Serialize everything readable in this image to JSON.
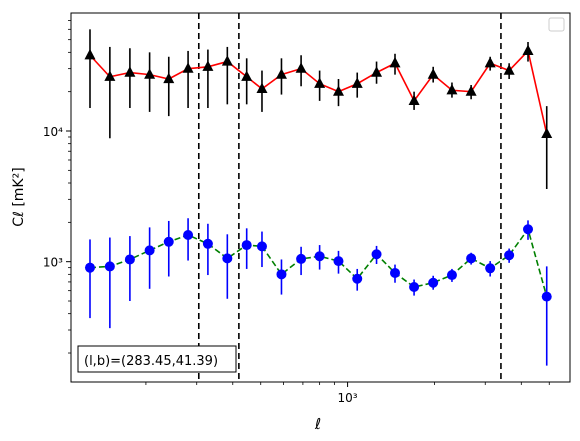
{
  "chart_data": {
    "type": "scatter",
    "xscale": "log",
    "yscale": "log",
    "xlim": [
      110,
      5900
    ],
    "ylim": [
      120,
      80000
    ],
    "xlabel": "ℓ",
    "ylabel": "Cℓ  [mK²]",
    "x_ticks": [
      {
        "value": 1000,
        "label": "10³"
      }
    ],
    "y_ticks": [
      {
        "value": 1000,
        "label": "10³"
      },
      {
        "value": 10000,
        "label": "10⁴"
      }
    ],
    "grid": false,
    "legend": {
      "placement": "top-right",
      "entries": []
    },
    "annotation": "(l,b)=(283.45,41.39)",
    "vlines": [
      305,
      420,
      3400
    ],
    "series": [
      {
        "marker": "triangle",
        "marker_color": "#000000",
        "line_color": "#ff0000",
        "line_style": "solid",
        "errorbar_color": "#000000",
        "points": [
          {
            "x": 128,
            "y": 38000,
            "ylo": 15000,
            "yhi": 60000
          },
          {
            "x": 150,
            "y": 26000,
            "ylo": 8800,
            "yhi": 44000
          },
          {
            "x": 176,
            "y": 28000,
            "ylo": 15000,
            "yhi": 43000
          },
          {
            "x": 206,
            "y": 27000,
            "ylo": 14000,
            "yhi": 40000
          },
          {
            "x": 240,
            "y": 25000,
            "ylo": 13000,
            "yhi": 37000
          },
          {
            "x": 280,
            "y": 30000,
            "ylo": 15000,
            "yhi": 41000
          },
          {
            "x": 328,
            "y": 31000,
            "ylo": 15000,
            "yhi": 42000
          },
          {
            "x": 383,
            "y": 34000,
            "ylo": 16000,
            "yhi": 44000
          },
          {
            "x": 447,
            "y": 26000,
            "ylo": 16000,
            "yhi": 36000
          },
          {
            "x": 505,
            "y": 21000,
            "ylo": 14000,
            "yhi": 29000
          },
          {
            "x": 590,
            "y": 27000,
            "ylo": 19000,
            "yhi": 36000
          },
          {
            "x": 690,
            "y": 30000,
            "ylo": 22000,
            "yhi": 38000
          },
          {
            "x": 800,
            "y": 23000,
            "ylo": 17000,
            "yhi": 29000
          },
          {
            "x": 930,
            "y": 20000,
            "ylo": 15500,
            "yhi": 25000
          },
          {
            "x": 1080,
            "y": 23000,
            "ylo": 18000,
            "yhi": 28000
          },
          {
            "x": 1260,
            "y": 28000,
            "ylo": 23000,
            "yhi": 34000
          },
          {
            "x": 1460,
            "y": 33000,
            "ylo": 27000,
            "yhi": 39000
          },
          {
            "x": 1700,
            "y": 17000,
            "ylo": 14500,
            "yhi": 20000
          },
          {
            "x": 1980,
            "y": 27000,
            "ylo": 23500,
            "yhi": 31000
          },
          {
            "x": 2300,
            "y": 20500,
            "ylo": 18000,
            "yhi": 23500
          },
          {
            "x": 2680,
            "y": 20000,
            "ylo": 17500,
            "yhi": 22500
          },
          {
            "x": 3120,
            "y": 33000,
            "ylo": 29000,
            "yhi": 37000
          },
          {
            "x": 3630,
            "y": 29000,
            "ylo": 25000,
            "yhi": 33000
          },
          {
            "x": 4220,
            "y": 41000,
            "ylo": 34000,
            "yhi": 48000
          },
          {
            "x": 4900,
            "y": 9500,
            "ylo": 3600,
            "yhi": 15500
          }
        ]
      },
      {
        "marker": "circle",
        "marker_color": "#0000ff",
        "line_color": "#008000",
        "line_style": "dashed",
        "errorbar_color": "#0000ff",
        "points": [
          {
            "x": 128,
            "y": 900,
            "ylo": 370,
            "yhi": 1480
          },
          {
            "x": 150,
            "y": 920,
            "ylo": 310,
            "yhi": 1530
          },
          {
            "x": 176,
            "y": 1040,
            "ylo": 500,
            "yhi": 1570
          },
          {
            "x": 206,
            "y": 1220,
            "ylo": 620,
            "yhi": 1830
          },
          {
            "x": 240,
            "y": 1420,
            "ylo": 770,
            "yhi": 2050
          },
          {
            "x": 280,
            "y": 1600,
            "ylo": 1020,
            "yhi": 2150
          },
          {
            "x": 328,
            "y": 1370,
            "ylo": 790,
            "yhi": 1950
          },
          {
            "x": 383,
            "y": 1060,
            "ylo": 520,
            "yhi": 1620
          },
          {
            "x": 447,
            "y": 1340,
            "ylo": 880,
            "yhi": 1800
          },
          {
            "x": 505,
            "y": 1310,
            "ylo": 910,
            "yhi": 1700
          },
          {
            "x": 590,
            "y": 800,
            "ylo": 560,
            "yhi": 1040
          },
          {
            "x": 690,
            "y": 1050,
            "ylo": 790,
            "yhi": 1300
          },
          {
            "x": 800,
            "y": 1100,
            "ylo": 870,
            "yhi": 1340
          },
          {
            "x": 930,
            "y": 1010,
            "ylo": 810,
            "yhi": 1210
          },
          {
            "x": 1080,
            "y": 740,
            "ylo": 600,
            "yhi": 880
          },
          {
            "x": 1260,
            "y": 1140,
            "ylo": 960,
            "yhi": 1320
          },
          {
            "x": 1460,
            "y": 820,
            "ylo": 690,
            "yhi": 950
          },
          {
            "x": 1700,
            "y": 640,
            "ylo": 550,
            "yhi": 730
          },
          {
            "x": 1980,
            "y": 690,
            "ylo": 610,
            "yhi": 780
          },
          {
            "x": 2300,
            "y": 790,
            "ylo": 700,
            "yhi": 880
          },
          {
            "x": 2680,
            "y": 1060,
            "ylo": 950,
            "yhi": 1170
          },
          {
            "x": 3120,
            "y": 890,
            "ylo": 770,
            "yhi": 1010
          },
          {
            "x": 3630,
            "y": 1120,
            "ylo": 980,
            "yhi": 1260
          },
          {
            "x": 4220,
            "y": 1770,
            "ylo": 1470,
            "yhi": 2070
          },
          {
            "x": 4900,
            "y": 540,
            "ylo": 160,
            "yhi": 920
          }
        ]
      }
    ]
  }
}
